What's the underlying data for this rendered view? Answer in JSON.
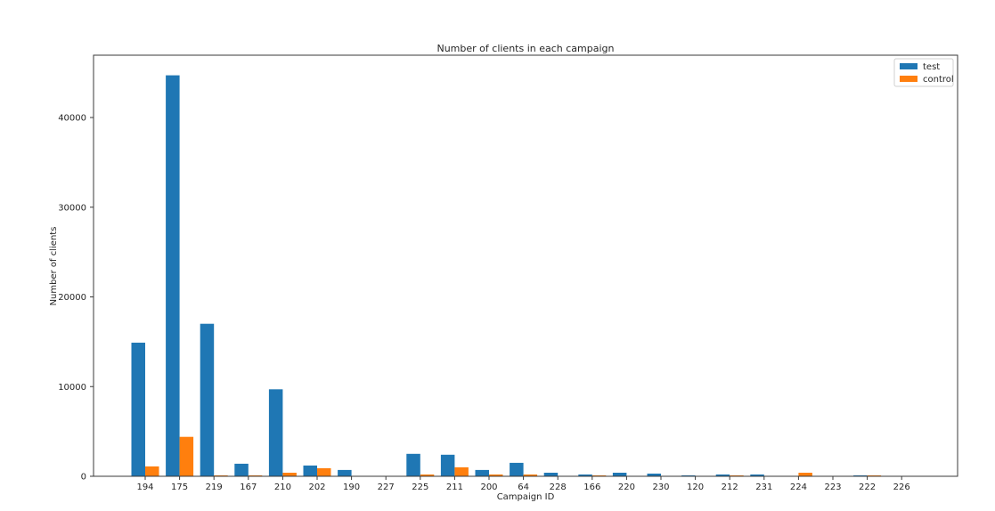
{
  "chart_data": {
    "type": "bar",
    "title": "Number of clients in each campaign",
    "xlabel": "Campaign ID",
    "ylabel": "Number of clients",
    "categories": [
      "194",
      "175",
      "219",
      "167",
      "210",
      "202",
      "190",
      "227",
      "225",
      "211",
      "200",
      "64",
      "228",
      "166",
      "220",
      "230",
      "120",
      "212",
      "231",
      "224",
      "223",
      "222",
      "226"
    ],
    "series": [
      {
        "name": "test",
        "color": "#1f77b4",
        "values": [
          14900,
          44700,
          17000,
          1400,
          9700,
          1200,
          700,
          0,
          2500,
          2400,
          700,
          1500,
          400,
          200,
          400,
          300,
          100,
          200,
          200,
          0,
          0,
          100,
          0
        ]
      },
      {
        "name": "control",
        "color": "#ff7f0e",
        "values": [
          1100,
          4400,
          100,
          100,
          400,
          900,
          0,
          0,
          200,
          1000,
          200,
          200,
          0,
          100,
          0,
          0,
          0,
          100,
          0,
          400,
          0,
          100,
          0
        ]
      }
    ],
    "yticks": [
      0,
      10000,
      20000,
      30000,
      40000
    ],
    "ylim": [
      0,
      47000
    ],
    "grid": false,
    "legend_position": "upper right"
  }
}
